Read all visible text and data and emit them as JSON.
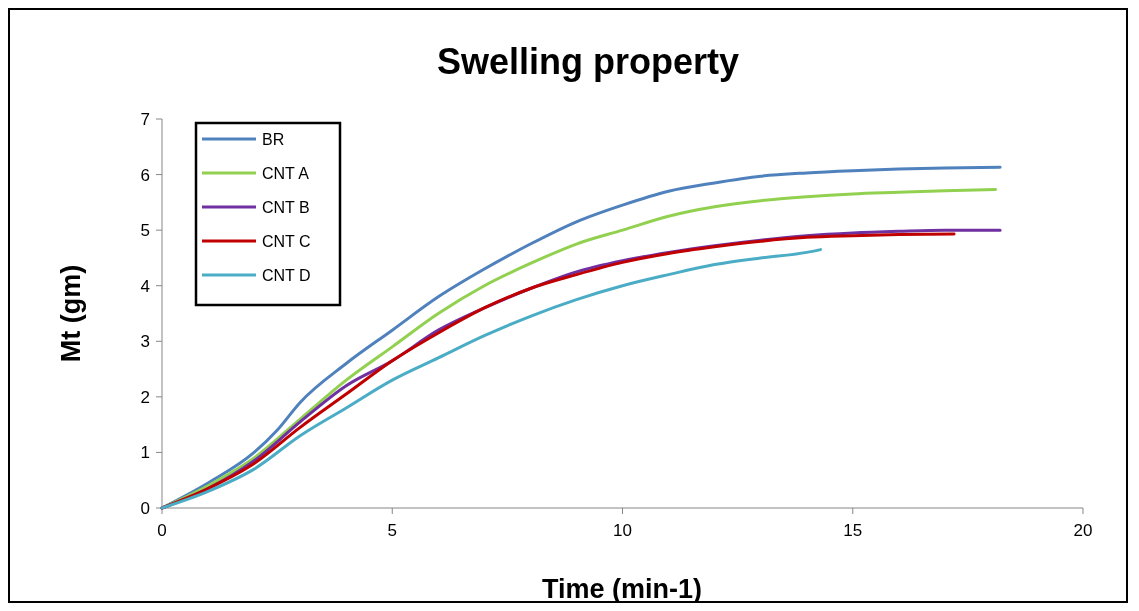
{
  "chart_data": {
    "type": "line",
    "title": "Swelling property",
    "xlabel": "Time (min-1)",
    "ylabel": "Mt (gm)",
    "xlim": [
      0,
      20
    ],
    "xticks": [
      0,
      5,
      10,
      15,
      20
    ],
    "ylim": [
      0,
      7
    ],
    "yticks": [
      0,
      1,
      2,
      3,
      4,
      5,
      6,
      7
    ],
    "grid": false,
    "legend": "top left",
    "marker": "none",
    "series": [
      {
        "name": "BR",
        "color": "#4f81bd",
        "x": [
          0,
          1,
          2,
          2.5,
          3,
          4,
          5,
          6,
          7,
          8,
          9,
          10,
          11,
          12,
          13,
          14,
          15,
          16,
          17,
          18.2
        ],
        "values": [
          0,
          0.45,
          1.0,
          1.4,
          1.9,
          2.6,
          3.2,
          3.8,
          4.3,
          4.75,
          5.15,
          5.45,
          5.7,
          5.85,
          5.97,
          6.03,
          6.07,
          6.1,
          6.12,
          6.13
        ]
      },
      {
        "name": "CNT A",
        "color": "#92d050",
        "x": [
          0,
          1,
          2,
          3,
          4,
          5,
          6,
          7,
          8,
          9,
          10,
          11,
          12,
          13,
          14,
          15,
          16,
          17,
          18.1
        ],
        "values": [
          0,
          0.4,
          0.9,
          1.6,
          2.3,
          2.9,
          3.5,
          4.0,
          4.4,
          4.75,
          5.0,
          5.25,
          5.42,
          5.53,
          5.6,
          5.65,
          5.68,
          5.71,
          5.73
        ]
      },
      {
        "name": "CNT B",
        "color": "#7030a0",
        "x": [
          0,
          1,
          2,
          3,
          4,
          5,
          6,
          7,
          8,
          9,
          10,
          11,
          12,
          13,
          14,
          15,
          16,
          17,
          18.2
        ],
        "values": [
          0,
          0.35,
          0.85,
          1.55,
          2.2,
          2.65,
          3.2,
          3.6,
          3.95,
          4.25,
          4.45,
          4.6,
          4.72,
          4.82,
          4.9,
          4.95,
          4.98,
          5.0,
          5.0
        ]
      },
      {
        "name": "CNT C",
        "color": "#c00000",
        "x": [
          0,
          1,
          2,
          3,
          4,
          5,
          6,
          7,
          8,
          9,
          10,
          11,
          12,
          13,
          14,
          15,
          16,
          17.2
        ],
        "values": [
          0,
          0.35,
          0.8,
          1.45,
          2.05,
          2.65,
          3.15,
          3.6,
          3.95,
          4.2,
          4.42,
          4.58,
          4.7,
          4.8,
          4.87,
          4.9,
          4.92,
          4.93
        ]
      },
      {
        "name": "CNT D",
        "color": "#4bacc6",
        "x": [
          0,
          1,
          2,
          3,
          4,
          5,
          6,
          7,
          8,
          9,
          10,
          11,
          12,
          13,
          14,
          14.3
        ],
        "values": [
          0,
          0.3,
          0.7,
          1.3,
          1.8,
          2.3,
          2.7,
          3.1,
          3.45,
          3.75,
          4.0,
          4.2,
          4.38,
          4.5,
          4.6,
          4.65
        ]
      }
    ]
  }
}
